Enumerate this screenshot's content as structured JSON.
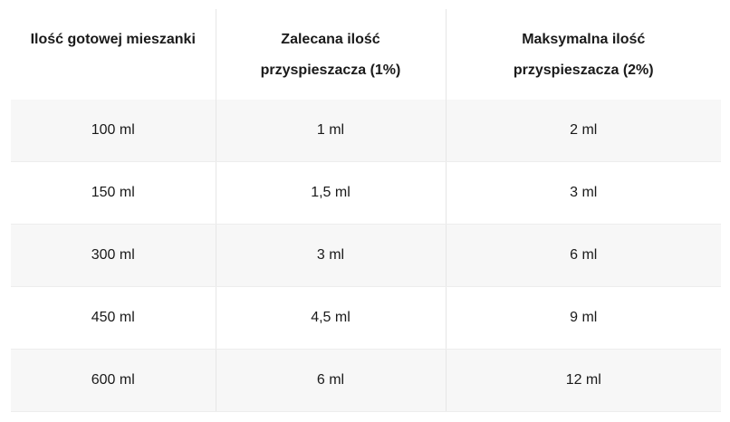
{
  "table": {
    "header": [
      "Ilość gotowej mieszanki",
      "Zalecana ilość przyspieszacza (1%)",
      "Maksymalna ilość przyspieszacza (2%)"
    ],
    "rows": [
      [
        "100 ml",
        "1 ml",
        "2 ml"
      ],
      [
        "150 ml",
        "1,5 ml",
        "3 ml"
      ],
      [
        "300 ml",
        "3 ml",
        "6 ml"
      ],
      [
        "450 ml",
        "4,5 ml",
        "9 ml"
      ],
      [
        "600 ml",
        "6 ml",
        "12 ml"
      ]
    ]
  }
}
